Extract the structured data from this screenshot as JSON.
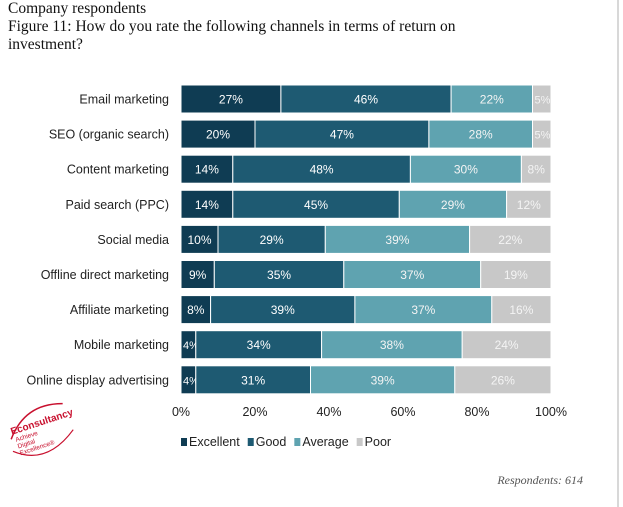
{
  "header": {
    "line1": "Company respondents",
    "figure_title_line1": "Figure 11: How do you rate the following channels in terms of return on",
    "figure_title_line2": "investment?"
  },
  "footer": {
    "respondents": "Respondents: 614"
  },
  "logo": {
    "brand": "Econsultancy",
    "tagline": "Achieve Digital Excellence®"
  },
  "colors": {
    "Excellent": "#0f3c53",
    "Good": "#1e5a72",
    "Average": "#5fa3b0",
    "Poor": "#c8c8c8"
  },
  "chart_data": {
    "type": "bar",
    "orientation": "horizontal",
    "stacked": true,
    "categories": [
      "Email marketing",
      "SEO (organic search)",
      "Content marketing",
      "Paid search (PPC)",
      "Social media",
      "Offline direct marketing",
      "Affiliate marketing",
      "Mobile marketing",
      "Online display advertising"
    ],
    "series": [
      {
        "name": "Excellent",
        "values": [
          27,
          20,
          14,
          14,
          10,
          9,
          8,
          4,
          4
        ]
      },
      {
        "name": "Good",
        "values": [
          46,
          47,
          48,
          45,
          29,
          35,
          39,
          34,
          31
        ]
      },
      {
        "name": "Average",
        "values": [
          22,
          28,
          30,
          29,
          39,
          37,
          37,
          38,
          39
        ]
      },
      {
        "name": "Poor",
        "values": [
          5,
          5,
          8,
          12,
          22,
          19,
          16,
          24,
          26
        ]
      }
    ],
    "xlim": [
      0,
      100
    ],
    "xticks": [
      "0%",
      "20%",
      "40%",
      "60%",
      "80%",
      "100%"
    ],
    "legend": "bottom",
    "grid": false
  }
}
